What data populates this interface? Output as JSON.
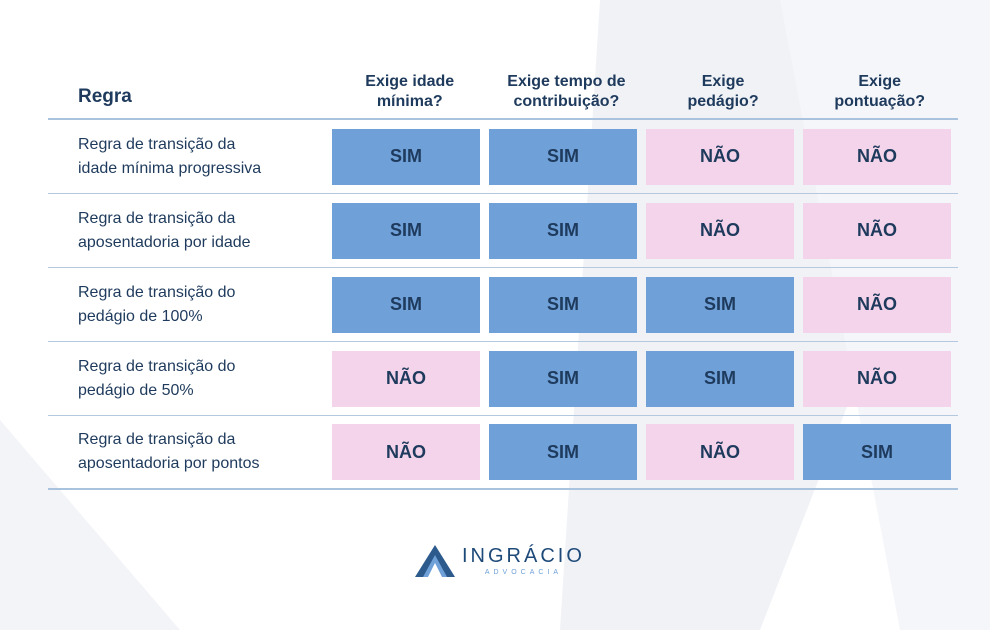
{
  "colors": {
    "sim": "#6fa0d8",
    "nao": "#f3d4ea",
    "text": "#1e3a5c"
  },
  "table": {
    "rule_header": "Regra",
    "columns": [
      {
        "line1": "Exige idade",
        "line2": "mínima?"
      },
      {
        "line1": "Exige tempo de",
        "line2": "contribuição?"
      },
      {
        "line1": "Exige",
        "line2": "pedágio?"
      },
      {
        "line1": "Exige",
        "line2": "pontuação?"
      }
    ],
    "rows": [
      {
        "line1": "Regra de transição da",
        "line2": "idade mínima progressiva",
        "values": [
          "SIM",
          "SIM",
          "NÃO",
          "NÃO"
        ]
      },
      {
        "line1": "Regra de transição da",
        "line2": "aposentadoria por idade",
        "values": [
          "SIM",
          "SIM",
          "NÃO",
          "NÃO"
        ]
      },
      {
        "line1": "Regra de transição do",
        "line2": "pedágio de 100%",
        "values": [
          "SIM",
          "SIM",
          "SIM",
          "NÃO"
        ]
      },
      {
        "line1": "Regra de transição do",
        "line2": "pedágio de 50%",
        "values": [
          "NÃO",
          "SIM",
          "SIM",
          "NÃO"
        ]
      },
      {
        "line1": "Regra de transição da",
        "line2": "aposentadoria por pontos",
        "values": [
          "NÃO",
          "SIM",
          "NÃO",
          "SIM"
        ]
      }
    ]
  },
  "logo": {
    "brand": "INGRÁCIO",
    "sub": "ADVOCACIA"
  }
}
